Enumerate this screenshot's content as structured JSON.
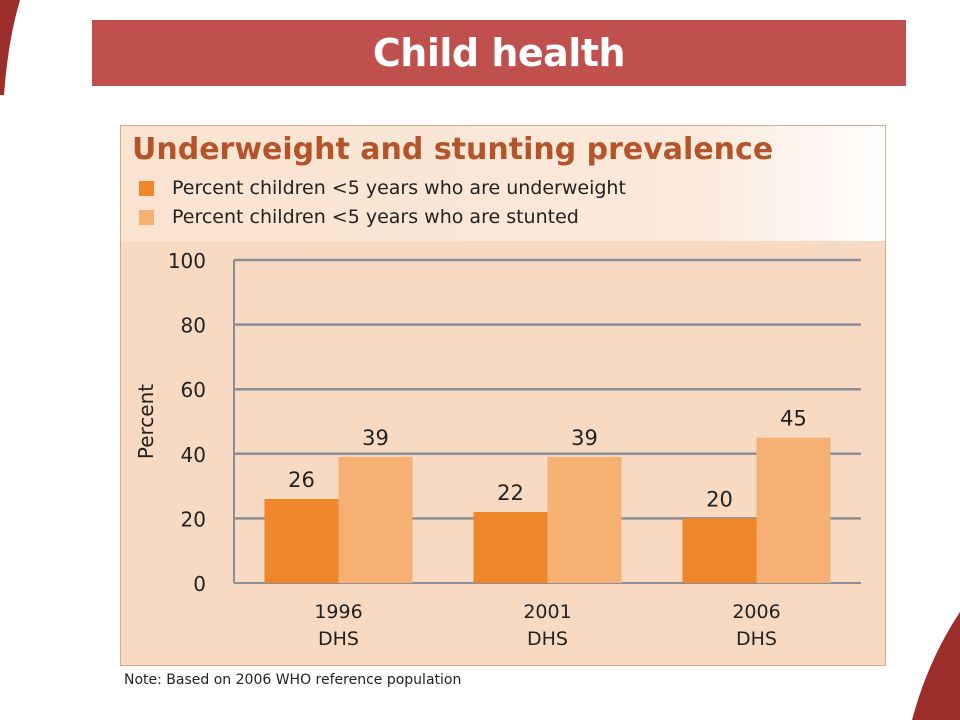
{
  "slide": {
    "title": "Child health",
    "note": "Note: Based on 2006 WHO reference population"
  },
  "colors": {
    "banner": "#c0504d",
    "accent": "#b5542a",
    "underweight": "#f0862a",
    "stunted": "#f6b073",
    "panel": "#f8d9c2",
    "gridline": "#8a8f98"
  },
  "chart_data": {
    "type": "bar",
    "title": "Underweight and stunting prevalence",
    "ylabel": "Percent",
    "xlabel": "",
    "ylim": [
      0,
      100
    ],
    "yticks": [
      0,
      20,
      40,
      60,
      80,
      100
    ],
    "grid": true,
    "legend_position": "top",
    "categories": [
      {
        "line1": "1996",
        "line2": "DHS"
      },
      {
        "line1": "2001",
        "line2": "DHS"
      },
      {
        "line1": "2006",
        "line2": "DHS"
      }
    ],
    "series": [
      {
        "name": "Percent children <5 years who are underweight",
        "color": "#f0862a",
        "values": [
          26,
          22,
          20
        ]
      },
      {
        "name": "Percent children <5 years who are stunted",
        "color": "#f6b073",
        "values": [
          39,
          39,
          45
        ]
      }
    ]
  }
}
